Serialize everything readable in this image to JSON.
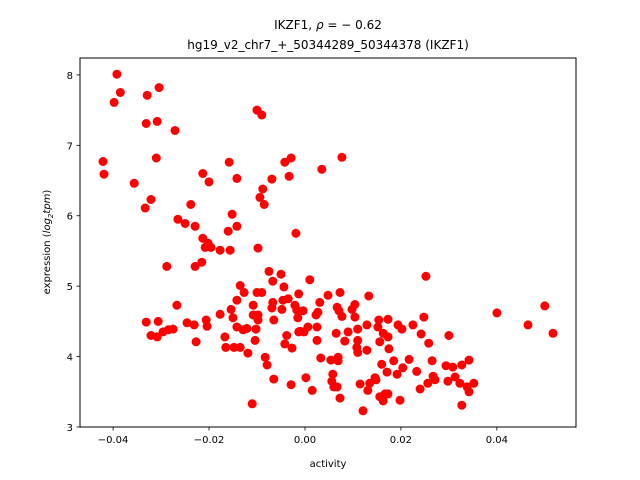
{
  "chart_data": {
    "type": "scatter",
    "title_line1_prefix": "IKZF1, ",
    "title_line1_rho": "ρ",
    "title_line1_suffix": " = − 0.62",
    "title_line2": "hg19_v2_chr7_+_50344289_50344378 (IKZF1)",
    "xlabel": "activity",
    "ylabel_prefix": "expression (",
    "ylabel_log": "log",
    "ylabel_sub": "2",
    "ylabel_tpm": "tpm",
    "ylabel_suffix": ")",
    "xlim": [
      -0.0469,
      0.0565
    ],
    "ylim": [
      3.0,
      8.24
    ],
    "xticks": [
      -0.04,
      -0.02,
      0.0,
      0.02,
      0.04
    ],
    "xtick_labels": [
      "−0.04",
      "−0.02",
      "0.00",
      "0.02",
      "0.04"
    ],
    "yticks": [
      3,
      4,
      5,
      6,
      7,
      8
    ],
    "ytick_labels": [
      "3",
      "4",
      "5",
      "6",
      "7",
      "8"
    ],
    "grid": false,
    "marker_color": "#ff0000",
    "points": [
      [
        -0.0392,
        8.01
      ],
      [
        -0.0385,
        7.75
      ],
      [
        -0.0398,
        7.61
      ],
      [
        -0.0329,
        7.71
      ],
      [
        -0.0304,
        7.82
      ],
      [
        -0.0331,
        7.31
      ],
      [
        -0.0308,
        7.34
      ],
      [
        -0.0271,
        7.21
      ],
      [
        -0.0421,
        6.77
      ],
      [
        -0.0419,
        6.59
      ],
      [
        -0.031,
        6.82
      ],
      [
        -0.0356,
        6.46
      ],
      [
        -0.0321,
        6.23
      ],
      [
        -0.0333,
        6.11
      ],
      [
        -0.0265,
        5.95
      ],
      [
        -0.025,
        5.89
      ],
      [
        -0.0229,
        5.85
      ],
      [
        -0.0238,
        6.16
      ],
      [
        -0.0213,
        6.6
      ],
      [
        -0.02,
        6.48
      ],
      [
        -0.0213,
        5.68
      ],
      [
        -0.0202,
        5.61
      ],
      [
        -0.0208,
        5.55
      ],
      [
        -0.0196,
        5.55
      ],
      [
        -0.0177,
        5.51
      ],
      [
        -0.0156,
        5.51
      ],
      [
        -0.0158,
        6.76
      ],
      [
        -0.0142,
        6.53
      ],
      [
        -0.0152,
        6.02
      ],
      [
        -0.016,
        5.78
      ],
      [
        -0.0142,
        5.85
      ],
      [
        -0.0098,
        5.54
      ],
      [
        -0.01,
        7.5
      ],
      [
        -0.009,
        7.43
      ],
      [
        -0.0042,
        6.76
      ],
      [
        -0.0029,
        6.82
      ],
      [
        -0.0033,
        6.56
      ],
      [
        0.0035,
        6.66
      ],
      [
        0.0077,
        6.83
      ],
      [
        -0.0069,
        6.52
      ],
      [
        -0.0088,
        6.38
      ],
      [
        -0.0094,
        6.26
      ],
      [
        -0.0085,
        6.16
      ],
      [
        -0.0019,
        5.75
      ],
      [
        -0.0288,
        5.28
      ],
      [
        -0.0229,
        5.28
      ],
      [
        -0.0215,
        5.34
      ],
      [
        -0.0075,
        5.21
      ],
      [
        -0.005,
        5.17
      ],
      [
        -0.0067,
        5.07
      ],
      [
        -0.0044,
        4.99
      ],
      [
        0.001,
        5.09
      ],
      [
        -0.0135,
        5.01
      ],
      [
        -0.0127,
        4.91
      ],
      [
        -0.01,
        4.91
      ],
      [
        -0.009,
        4.91
      ],
      [
        -0.0142,
        4.8
      ],
      [
        -0.0013,
        4.89
      ],
      [
        -0.0067,
        4.77
      ],
      [
        -0.0046,
        4.8
      ],
      [
        -0.0035,
        4.82
      ],
      [
        -0.0108,
        4.73
      ],
      [
        -0.0069,
        4.69
      ],
      [
        -0.0048,
        4.67
      ],
      [
        -0.0021,
        4.73
      ],
      [
        -0.0017,
        4.66
      ],
      [
        -0.0004,
        4.65
      ],
      [
        0.0031,
        4.77
      ],
      [
        0.0027,
        4.63
      ],
      [
        0.0048,
        4.87
      ],
      [
        -0.0154,
        4.67
      ],
      [
        -0.0177,
        4.6
      ],
      [
        -0.015,
        4.55
      ],
      [
        -0.0108,
        4.59
      ],
      [
        -0.0098,
        4.59
      ],
      [
        -0.0098,
        4.52
      ],
      [
        -0.0065,
        4.52
      ],
      [
        -0.0267,
        4.73
      ],
      [
        -0.0331,
        4.49
      ],
      [
        -0.0306,
        4.5
      ],
      [
        -0.0246,
        4.48
      ],
      [
        -0.0231,
        4.45
      ],
      [
        -0.0206,
        4.52
      ],
      [
        -0.0204,
        4.43
      ],
      [
        -0.0321,
        4.3
      ],
      [
        -0.0308,
        4.28
      ],
      [
        -0.0296,
        4.35
      ],
      [
        -0.0285,
        4.38
      ],
      [
        -0.0275,
        4.39
      ],
      [
        -0.0227,
        4.21
      ],
      [
        -0.0142,
        4.42
      ],
      [
        -0.0129,
        4.38
      ],
      [
        -0.0121,
        4.4
      ],
      [
        -0.0102,
        4.39
      ],
      [
        -0.0167,
        4.28
      ],
      [
        -0.0104,
        4.23
      ],
      [
        -0.0165,
        4.13
      ],
      [
        -0.0148,
        4.13
      ],
      [
        -0.0135,
        4.13
      ],
      [
        -0.0119,
        4.05
      ],
      [
        -0.0083,
        3.99
      ],
      [
        -0.0079,
        3.88
      ],
      [
        -0.0065,
        3.68
      ],
      [
        -0.0029,
        3.6
      ],
      [
        0.0002,
        3.7
      ],
      [
        0.0015,
        3.52
      ],
      [
        -0.011,
        3.33
      ],
      [
        -0.0038,
        4.3
      ],
      [
        -0.0042,
        4.18
      ],
      [
        -0.0027,
        4.12
      ],
      [
        -0.0013,
        4.35
      ],
      [
        -0.0002,
        4.35
      ],
      [
        0.0006,
        4.42
      ],
      [
        0.0025,
        4.42
      ],
      [
        0.0025,
        4.23
      ],
      [
        0.0033,
        3.98
      ],
      [
        0.0252,
        5.14
      ],
      [
        0.0073,
        4.91
      ],
      [
        0.0133,
        4.86
      ],
      [
        0.0067,
        4.7
      ],
      [
        0.0104,
        4.74
      ],
      [
        0.0071,
        4.65
      ],
      [
        0.0077,
        4.57
      ],
      [
        0.0098,
        4.67
      ],
      [
        0.0104,
        4.56
      ],
      [
        -0.0015,
        4.55
      ],
      [
        0.0023,
        4.59
      ],
      [
        0.0154,
        4.52
      ],
      [
        0.0173,
        4.53
      ],
      [
        0.0194,
        4.45
      ],
      [
        0.0202,
        4.39
      ],
      [
        0.0225,
        4.45
      ],
      [
        0.0248,
        4.56
      ],
      [
        -0.001,
        4.36
      ],
      [
        0.0065,
        4.33
      ],
      [
        0.009,
        4.35
      ],
      [
        0.011,
        4.39
      ],
      [
        0.0129,
        4.45
      ],
      [
        0.0152,
        4.42
      ],
      [
        0.0163,
        4.33
      ],
      [
        0.0173,
        4.28
      ],
      [
        0.0242,
        4.32
      ],
      [
        0.03,
        4.3
      ],
      [
        0.0083,
        4.22
      ],
      [
        0.011,
        4.23
      ],
      [
        0.0156,
        4.21
      ],
      [
        0.0258,
        4.19
      ],
      [
        0.0108,
        4.13
      ],
      [
        0.011,
        4.06
      ],
      [
        0.0129,
        4.09
      ],
      [
        0.0175,
        4.11
      ],
      [
        0.0054,
        3.95
      ],
      [
        0.0069,
        3.99
      ],
      [
        0.0069,
        3.94
      ],
      [
        0.0185,
        3.94
      ],
      [
        0.0217,
        3.96
      ],
      [
        0.0265,
        3.94
      ],
      [
        0.0342,
        3.95
      ],
      [
        0.016,
        3.89
      ],
      [
        0.0171,
        3.78
      ],
      [
        0.0204,
        3.84
      ],
      [
        0.0233,
        3.79
      ],
      [
        0.0294,
        3.87
      ],
      [
        0.0308,
        3.85
      ],
      [
        0.0327,
        3.88
      ],
      [
        0.0058,
        3.75
      ],
      [
        0.0192,
        3.75
      ],
      [
        0.0056,
        3.65
      ],
      [
        0.0146,
        3.7
      ],
      [
        0.0267,
        3.72
      ],
      [
        0.0313,
        3.71
      ],
      [
        0.0115,
        3.61
      ],
      [
        0.0135,
        3.62
      ],
      [
        0.0148,
        3.67
      ],
      [
        0.0256,
        3.62
      ],
      [
        0.0271,
        3.67
      ],
      [
        0.0298,
        3.65
      ],
      [
        0.0323,
        3.62
      ],
      [
        0.0352,
        3.62
      ],
      [
        0.006,
        3.57
      ],
      [
        0.0067,
        3.57
      ],
      [
        0.0131,
        3.52
      ],
      [
        0.0167,
        3.47
      ],
      [
        0.024,
        3.54
      ],
      [
        0.0338,
        3.57
      ],
      [
        0.0342,
        3.5
      ],
      [
        0.0073,
        3.41
      ],
      [
        0.0156,
        3.43
      ],
      [
        0.0163,
        3.37
      ],
      [
        0.0173,
        3.47
      ],
      [
        0.0198,
        3.38
      ],
      [
        0.0327,
        3.31
      ],
      [
        0.0121,
        3.23
      ],
      [
        0.04,
        4.62
      ],
      [
        0.0465,
        4.45
      ],
      [
        0.05,
        4.72
      ],
      [
        0.0517,
        4.33
      ]
    ]
  }
}
